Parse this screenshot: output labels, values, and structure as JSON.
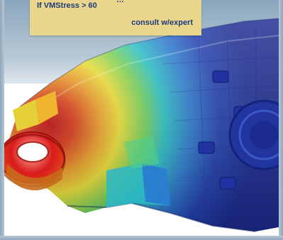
{
  "callout": {
    "condition": "If VMStress > 60",
    "action": "consult w/expert",
    "partial_top": "…"
  },
  "colors": {
    "callout_bg": "#e9d58c",
    "callout_text": "#1f3a7a",
    "stress_high": "#d61e1e",
    "stress_mid": "#f3e43a",
    "stress_low": "#2137a8"
  }
}
